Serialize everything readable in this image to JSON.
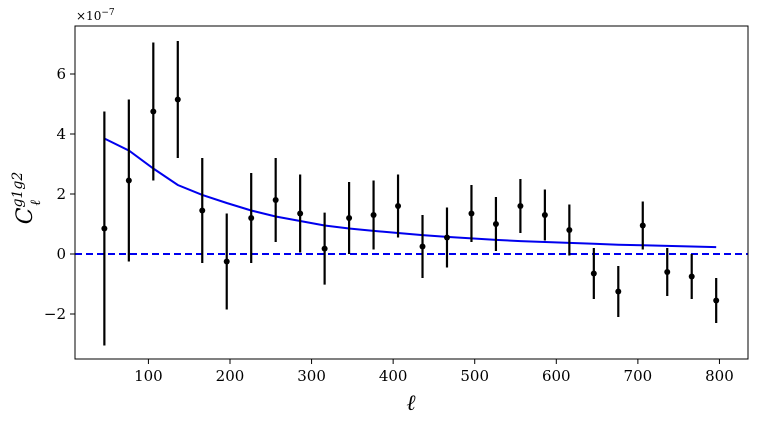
{
  "chart_data": {
    "type": "scatter",
    "title": "",
    "xlabel": "ℓ",
    "ylabel_main": "C",
    "ylabel_sub": "ℓ",
    "ylabel_sup": "g1g2",
    "y_scale_label": "×10",
    "y_scale_exp": "−7",
    "xlim": [
      10,
      835
    ],
    "ylim": [
      -3.5,
      7.6
    ],
    "x_ticks": [
      100,
      200,
      300,
      400,
      500,
      600,
      700,
      800
    ],
    "x_tick_labels": [
      "100",
      "200",
      "300",
      "400",
      "500",
      "600",
      "700",
      "800"
    ],
    "y_ticks": [
      -2,
      0,
      2,
      4,
      6
    ],
    "y_tick_labels": [
      "−2",
      "0",
      "2",
      "4",
      "6"
    ],
    "grid": false,
    "colors": {
      "points": "#000000",
      "model": "#0000ee",
      "zero_line": "#0000ee"
    },
    "series": [
      {
        "kind": "errorbar",
        "x": [
          46,
          76,
          106,
          136,
          166,
          196,
          226,
          256,
          286,
          316,
          346,
          376,
          406,
          436,
          466,
          496,
          526,
          556,
          586,
          616,
          646,
          676,
          706,
          736,
          766,
          796
        ],
        "y": [
          0.85,
          2.45,
          4.75,
          5.15,
          1.45,
          -0.25,
          1.2,
          1.8,
          1.35,
          0.18,
          1.2,
          1.3,
          1.6,
          0.25,
          0.55,
          1.35,
          1.0,
          1.6,
          1.3,
          0.8,
          -0.65,
          -1.25,
          0.95,
          -0.6,
          -0.75,
          -1.55
        ],
        "yerr": [
          3.9,
          2.7,
          2.3,
          1.95,
          1.75,
          1.6,
          1.5,
          1.4,
          1.3,
          1.2,
          1.2,
          1.15,
          1.05,
          1.05,
          1.0,
          0.95,
          0.9,
          0.9,
          0.85,
          0.85,
          0.85,
          0.85,
          0.8,
          0.8,
          0.75,
          0.75
        ]
      },
      {
        "kind": "line",
        "x": [
          46,
          76,
          106,
          136,
          166,
          196,
          226,
          256,
          286,
          316,
          346,
          376,
          406,
          436,
          466,
          496,
          526,
          556,
          586,
          616,
          646,
          676,
          706,
          736,
          766,
          796
        ],
        "y": [
          3.85,
          3.45,
          2.85,
          2.3,
          1.97,
          1.7,
          1.45,
          1.25,
          1.1,
          0.95,
          0.85,
          0.77,
          0.7,
          0.63,
          0.57,
          0.52,
          0.47,
          0.43,
          0.4,
          0.37,
          0.34,
          0.31,
          0.29,
          0.27,
          0.25,
          0.23
        ]
      },
      {
        "kind": "hline",
        "y": 0,
        "style": "dashed"
      }
    ]
  }
}
